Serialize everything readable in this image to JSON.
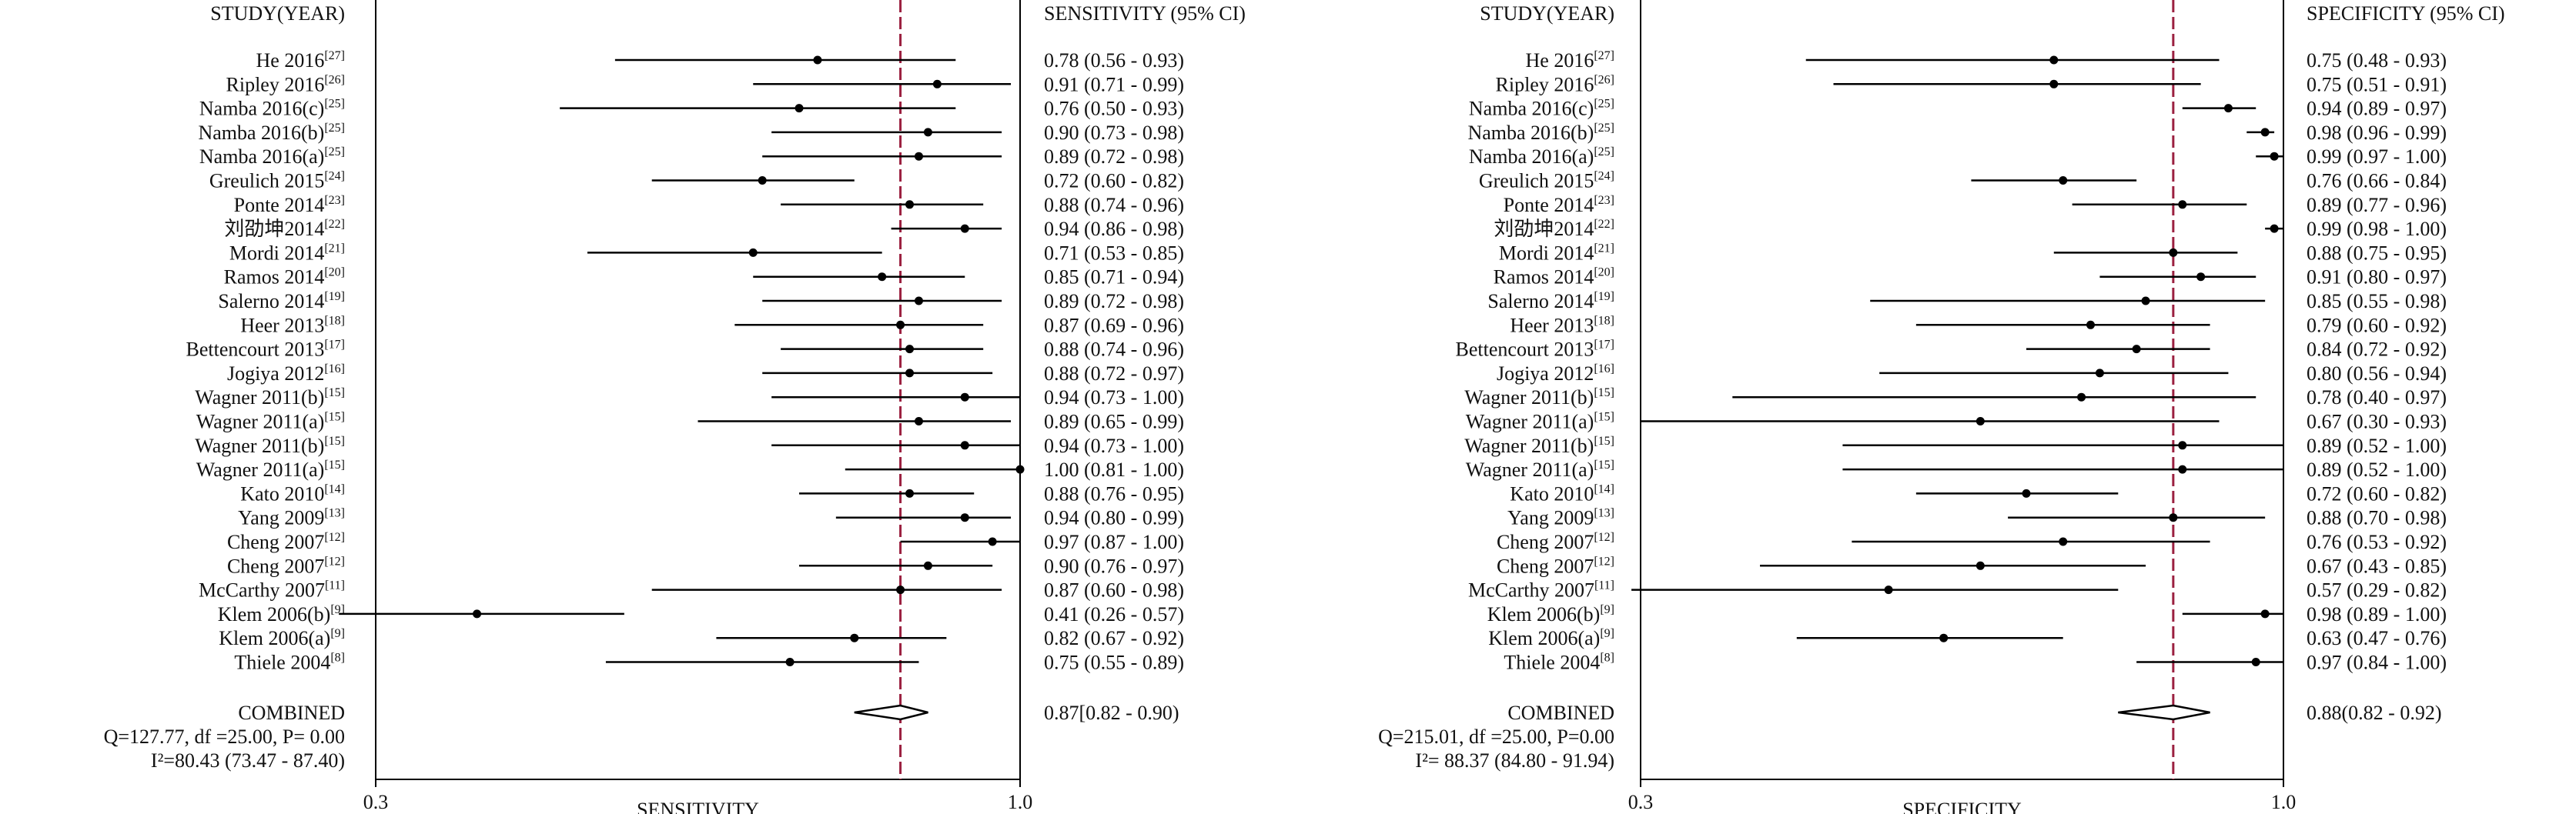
{
  "chart_data": [
    {
      "type": "forest",
      "header_study": "STUDY(YEAR)",
      "header_ci": "SENSITIVITY (95% CI)",
      "xlabel": "SENSITIVITY",
      "xlim": [
        0.3,
        1.0
      ],
      "tick_labels": [
        "0.3",
        "1.0"
      ],
      "pooled_line": 0.87,
      "reference_line_color": "#9b2040",
      "studies": [
        {
          "name": "He 2016",
          "ref": "[27]",
          "est": 0.78,
          "lo": 0.56,
          "hi": 0.93,
          "ci_text": "0.78 (0.56 - 0.93)"
        },
        {
          "name": "Ripley 2016",
          "ref": "[26]",
          "est": 0.91,
          "lo": 0.71,
          "hi": 0.99,
          "ci_text": "0.91 (0.71 - 0.99)"
        },
        {
          "name": "Namba 2016(c)",
          "ref": "[25]",
          "est": 0.76,
          "lo": 0.5,
          "hi": 0.93,
          "ci_text": "0.76 (0.50 - 0.93)"
        },
        {
          "name": "Namba 2016(b)",
          "ref": "[25]",
          "est": 0.9,
          "lo": 0.73,
          "hi": 0.98,
          "ci_text": "0.90 (0.73 - 0.98)"
        },
        {
          "name": "Namba 2016(a)",
          "ref": "[25]",
          "est": 0.89,
          "lo": 0.72,
          "hi": 0.98,
          "ci_text": "0.89 (0.72 - 0.98)"
        },
        {
          "name": "Greulich 2015",
          "ref": "[24]",
          "est": 0.72,
          "lo": 0.6,
          "hi": 0.82,
          "ci_text": "0.72 (0.60 - 0.82)"
        },
        {
          "name": "Ponte 2014",
          "ref": "[23]",
          "est": 0.88,
          "lo": 0.74,
          "hi": 0.96,
          "ci_text": "0.88 (0.74 - 0.96)"
        },
        {
          "name": "刘劭坤2014",
          "ref": "[22]",
          "est": 0.94,
          "lo": 0.86,
          "hi": 0.98,
          "ci_text": "0.94 (0.86 - 0.98)"
        },
        {
          "name": "Mordi 2014",
          "ref": "[21]",
          "est": 0.71,
          "lo": 0.53,
          "hi": 0.85,
          "ci_text": "0.71 (0.53 - 0.85)"
        },
        {
          "name": "Ramos 2014",
          "ref": "[20]",
          "est": 0.85,
          "lo": 0.71,
          "hi": 0.94,
          "ci_text": "0.85 (0.71 - 0.94)"
        },
        {
          "name": "Salerno 2014",
          "ref": "[19]",
          "est": 0.89,
          "lo": 0.72,
          "hi": 0.98,
          "ci_text": "0.89 (0.72 - 0.98)"
        },
        {
          "name": "Heer 2013",
          "ref": "[18]",
          "est": 0.87,
          "lo": 0.69,
          "hi": 0.96,
          "ci_text": "0.87 (0.69 - 0.96)"
        },
        {
          "name": "Bettencourt 2013",
          "ref": "[17]",
          "est": 0.88,
          "lo": 0.74,
          "hi": 0.96,
          "ci_text": "0.88 (0.74 - 0.96)"
        },
        {
          "name": "Jogiya 2012",
          "ref": "[16]",
          "est": 0.88,
          "lo": 0.72,
          "hi": 0.97,
          "ci_text": "0.88 (0.72 - 0.97)"
        },
        {
          "name": "Wagner 2011(b)",
          "ref": "[15]",
          "est": 0.94,
          "lo": 0.73,
          "hi": 1.0,
          "ci_text": "0.94 (0.73 - 1.00)"
        },
        {
          "name": "Wagner 2011(a)",
          "ref": "[15]",
          "est": 0.89,
          "lo": 0.65,
          "hi": 0.99,
          "ci_text": "0.89 (0.65 - 0.99)"
        },
        {
          "name": "Wagner 2011(b)",
          "ref": "[15]",
          "est": 0.94,
          "lo": 0.73,
          "hi": 1.0,
          "ci_text": "0.94 (0.73 - 1.00)"
        },
        {
          "name": "Wagner 2011(a)",
          "ref": "[15]",
          "est": 1.0,
          "lo": 0.81,
          "hi": 1.0,
          "ci_text": "1.00 (0.81 - 1.00)"
        },
        {
          "name": "Kato 2010",
          "ref": "[14]",
          "est": 0.88,
          "lo": 0.76,
          "hi": 0.95,
          "ci_text": "0.88 (0.76 - 0.95)"
        },
        {
          "name": "Yang 2009",
          "ref": "[13]",
          "est": 0.94,
          "lo": 0.8,
          "hi": 0.99,
          "ci_text": "0.94 (0.80 - 0.99)"
        },
        {
          "name": "Cheng 2007",
          "ref": "[12]",
          "est": 0.97,
          "lo": 0.87,
          "hi": 1.0,
          "ci_text": "0.97 (0.87 - 1.00)"
        },
        {
          "name": "Cheng 2007",
          "ref": "[12]",
          "est": 0.9,
          "lo": 0.76,
          "hi": 0.97,
          "ci_text": "0.90 (0.76 - 0.97)"
        },
        {
          "name": "McCarthy 2007",
          "ref": "[11]",
          "est": 0.87,
          "lo": 0.6,
          "hi": 0.98,
          "ci_text": "0.87 (0.60 - 0.98)"
        },
        {
          "name": "Klem 2006(b)",
          "ref": "[9]",
          "est": 0.41,
          "lo": 0.26,
          "hi": 0.57,
          "ci_text": "0.41 (0.26 - 0.57)"
        },
        {
          "name": "Klem 2006(a)",
          "ref": "[9]",
          "est": 0.82,
          "lo": 0.67,
          "hi": 0.92,
          "ci_text": "0.82 (0.67 - 0.92)"
        },
        {
          "name": "Thiele 2004",
          "ref": "[8]",
          "est": 0.75,
          "lo": 0.55,
          "hi": 0.89,
          "ci_text": "0.75 (0.55 - 0.89)"
        }
      ],
      "combined": {
        "label": "COMBINED",
        "est": 0.87,
        "lo": 0.82,
        "hi": 0.9,
        "ci_text": "0.87[0.82 - 0.90)"
      },
      "stats_q": "Q=127.77, df =25.00, P= 0.00",
      "stats_i2": "I²=80.43 (73.47 - 87.40)"
    },
    {
      "type": "forest",
      "header_study": "STUDY(YEAR)",
      "header_ci": "SPECIFICITY (95% CI)",
      "xlabel": "SPECIFICITY",
      "xlim": [
        0.3,
        1.0
      ],
      "tick_labels": [
        "0.3",
        "1.0"
      ],
      "pooled_line": 0.88,
      "reference_line_color": "#9b2040",
      "studies": [
        {
          "name": "He 2016",
          "ref": "[27]",
          "est": 0.75,
          "lo": 0.48,
          "hi": 0.93,
          "ci_text": "0.75 (0.48 - 0.93)"
        },
        {
          "name": "Ripley 2016",
          "ref": "[26]",
          "est": 0.75,
          "lo": 0.51,
          "hi": 0.91,
          "ci_text": "0.75 (0.51 - 0.91)"
        },
        {
          "name": "Namba 2016(c)",
          "ref": "[25]",
          "est": 0.94,
          "lo": 0.89,
          "hi": 0.97,
          "ci_text": "0.94 (0.89 - 0.97)"
        },
        {
          "name": "Namba 2016(b)",
          "ref": "[25]",
          "est": 0.98,
          "lo": 0.96,
          "hi": 0.99,
          "ci_text": "0.98 (0.96 - 0.99)"
        },
        {
          "name": "Namba 2016(a)",
          "ref": "[25]",
          "est": 0.99,
          "lo": 0.97,
          "hi": 1.0,
          "ci_text": "0.99 (0.97 - 1.00)"
        },
        {
          "name": "Greulich 2015",
          "ref": "[24]",
          "est": 0.76,
          "lo": 0.66,
          "hi": 0.84,
          "ci_text": "0.76 (0.66 - 0.84)"
        },
        {
          "name": "Ponte 2014",
          "ref": "[23]",
          "est": 0.89,
          "lo": 0.77,
          "hi": 0.96,
          "ci_text": "0.89 (0.77 - 0.96)"
        },
        {
          "name": "刘劭坤2014",
          "ref": "[22]",
          "est": 0.99,
          "lo": 0.98,
          "hi": 1.0,
          "ci_text": "0.99 (0.98 - 1.00)"
        },
        {
          "name": "Mordi 2014",
          "ref": "[21]",
          "est": 0.88,
          "lo": 0.75,
          "hi": 0.95,
          "ci_text": "0.88 (0.75 - 0.95)"
        },
        {
          "name": "Ramos 2014",
          "ref": "[20]",
          "est": 0.91,
          "lo": 0.8,
          "hi": 0.97,
          "ci_text": "0.91 (0.80 - 0.97)"
        },
        {
          "name": "Salerno 2014",
          "ref": "[19]",
          "est": 0.85,
          "lo": 0.55,
          "hi": 0.98,
          "ci_text": "0.85 (0.55 - 0.98)"
        },
        {
          "name": "Heer 2013",
          "ref": "[18]",
          "est": 0.79,
          "lo": 0.6,
          "hi": 0.92,
          "ci_text": "0.79 (0.60 - 0.92)"
        },
        {
          "name": "Bettencourt 2013",
          "ref": "[17]",
          "est": 0.84,
          "lo": 0.72,
          "hi": 0.92,
          "ci_text": "0.84 (0.72 - 0.92)"
        },
        {
          "name": "Jogiya 2012",
          "ref": "[16]",
          "est": 0.8,
          "lo": 0.56,
          "hi": 0.94,
          "ci_text": "0.80 (0.56 - 0.94)"
        },
        {
          "name": "Wagner 2011(b)",
          "ref": "[15]",
          "est": 0.78,
          "lo": 0.4,
          "hi": 0.97,
          "ci_text": "0.78 (0.40 - 0.97)"
        },
        {
          "name": "Wagner 2011(a)",
          "ref": "[15]",
          "est": 0.67,
          "lo": 0.3,
          "hi": 0.93,
          "ci_text": "0.67 (0.30 - 0.93)"
        },
        {
          "name": "Wagner 2011(b)",
          "ref": "[15]",
          "est": 0.89,
          "lo": 0.52,
          "hi": 1.0,
          "ci_text": "0.89 (0.52 - 1.00)"
        },
        {
          "name": "Wagner 2011(a)",
          "ref": "[15]",
          "est": 0.89,
          "lo": 0.52,
          "hi": 1.0,
          "ci_text": "0.89 (0.52 - 1.00)"
        },
        {
          "name": "Kato 2010",
          "ref": "[14]",
          "est": 0.72,
          "lo": 0.6,
          "hi": 0.82,
          "ci_text": "0.72 (0.60 - 0.82)"
        },
        {
          "name": "Yang 2009",
          "ref": "[13]",
          "est": 0.88,
          "lo": 0.7,
          "hi": 0.98,
          "ci_text": "0.88 (0.70 - 0.98)"
        },
        {
          "name": "Cheng 2007",
          "ref": "[12]",
          "est": 0.76,
          "lo": 0.53,
          "hi": 0.92,
          "ci_text": "0.76 (0.53 - 0.92)"
        },
        {
          "name": "Cheng 2007",
          "ref": "[12]",
          "est": 0.67,
          "lo": 0.43,
          "hi": 0.85,
          "ci_text": "0.67 (0.43 - 0.85)"
        },
        {
          "name": "McCarthy 2007",
          "ref": "[11]",
          "est": 0.57,
          "lo": 0.29,
          "hi": 0.82,
          "ci_text": "0.57 (0.29 - 0.82)"
        },
        {
          "name": "Klem 2006(b)",
          "ref": "[9]",
          "est": 0.98,
          "lo": 0.89,
          "hi": 1.0,
          "ci_text": "0.98 (0.89 - 1.00)"
        },
        {
          "name": "Klem 2006(a)",
          "ref": "[9]",
          "est": 0.63,
          "lo": 0.47,
          "hi": 0.76,
          "ci_text": "0.63 (0.47 - 0.76)"
        },
        {
          "name": "Thiele 2004",
          "ref": "[8]",
          "est": 0.97,
          "lo": 0.84,
          "hi": 1.0,
          "ci_text": "0.97 (0.84 - 1.00)"
        }
      ],
      "combined": {
        "label": "COMBINED",
        "est": 0.88,
        "lo": 0.82,
        "hi": 0.92,
        "ci_text": "0.88(0.82 - 0.92)"
      },
      "stats_q": "Q=215.01, df =25.00, P=0.00",
      "stats_i2": "I²= 88.37 (84.80 - 91.94)"
    }
  ]
}
